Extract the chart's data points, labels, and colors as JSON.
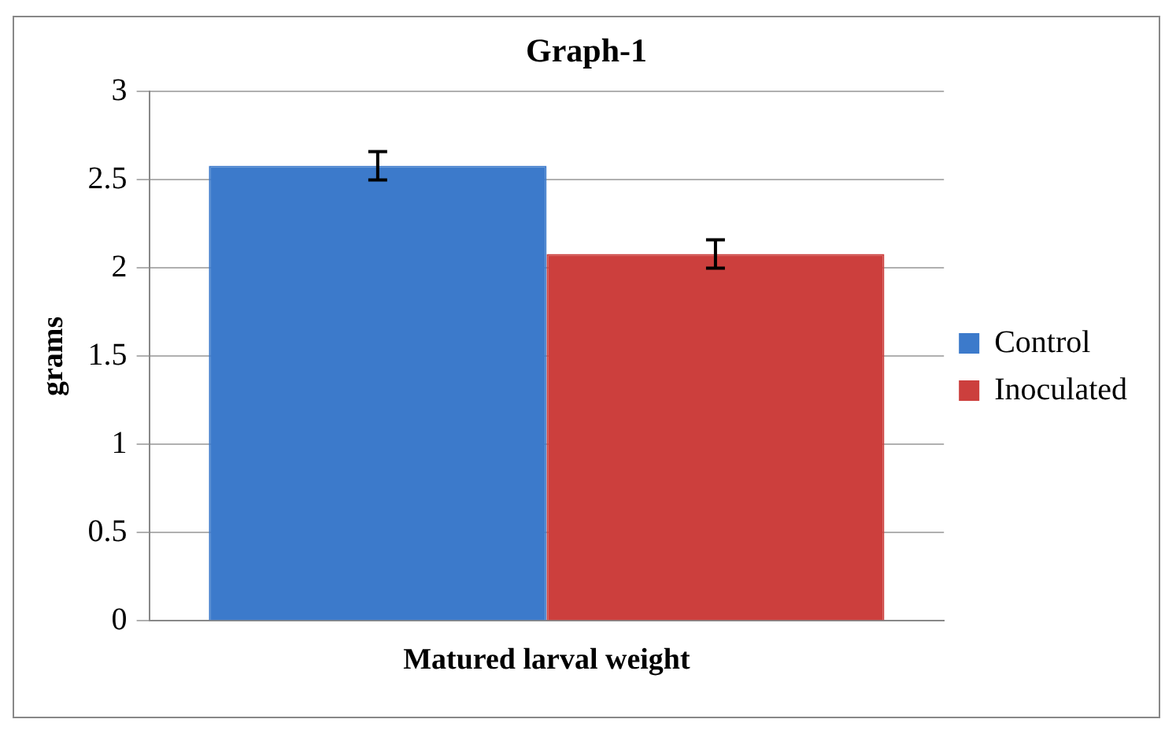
{
  "chart_data": {
    "type": "bar",
    "title": "Graph-1",
    "ylabel": "grams",
    "categories": [
      "Matured larval weight"
    ],
    "series": [
      {
        "name": "Control",
        "color": "#3c7acb",
        "values": [
          2.58
        ],
        "errors": [
          0.08
        ]
      },
      {
        "name": "Inoculated",
        "color": "#cc3f3d",
        "values": [
          2.08
        ],
        "errors": [
          0.08
        ]
      }
    ],
    "ylim": [
      0,
      3
    ],
    "yticks": [
      0,
      0.5,
      1,
      1.5,
      2,
      2.5,
      3
    ],
    "grid": "y",
    "legend": "right"
  }
}
